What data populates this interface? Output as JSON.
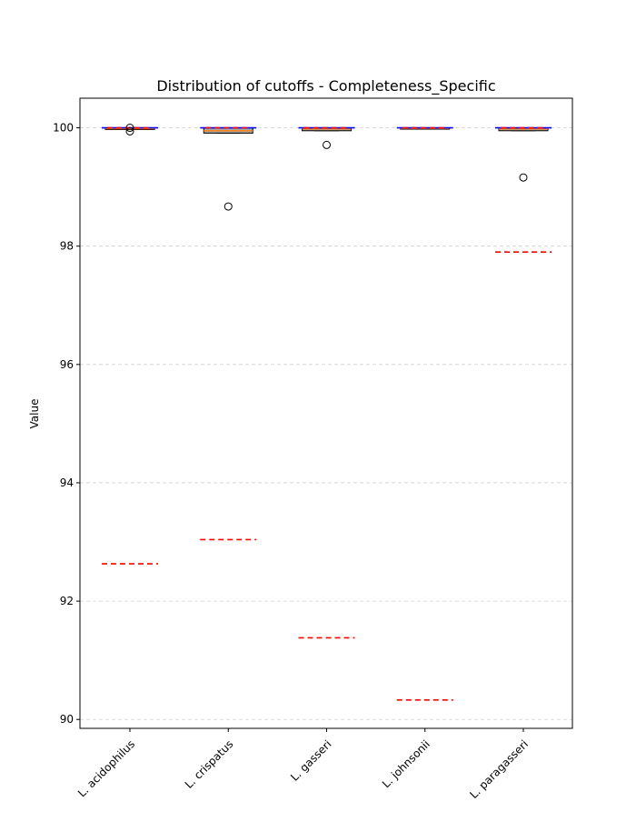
{
  "chart_data": {
    "type": "box",
    "title": "Distribution of cutoffs - Completeness_Specific",
    "xlabel": "",
    "ylabel": "Value",
    "ylim": [
      89.85,
      100.5
    ],
    "yticks": [
      90,
      92,
      94,
      96,
      98,
      100
    ],
    "grid": "y",
    "categories": [
      "L. acidophilus",
      "L. crispatus",
      "L. gasseri",
      "L. johnsonii",
      "L. paragasseri"
    ],
    "boxes": [
      {
        "q1": 99.97,
        "median": 99.985,
        "q3": 100.0,
        "whisker_low": 99.97,
        "whisker_high": 100.0,
        "outliers": [
          100.0,
          99.94
        ],
        "cutoff_red": 92.63,
        "cutoff_blue": 100.0
      },
      {
        "q1": 99.91,
        "median": 99.95,
        "q3": 100.0,
        "whisker_low": 99.91,
        "whisker_high": 100.0,
        "outliers": [
          98.67
        ],
        "cutoff_red": 93.04,
        "cutoff_blue": 100.0
      },
      {
        "q1": 99.95,
        "median": 99.98,
        "q3": 100.0,
        "whisker_low": 99.95,
        "whisker_high": 100.0,
        "outliers": [
          99.71
        ],
        "cutoff_red": 91.38,
        "cutoff_blue": 100.0
      },
      {
        "q1": 99.98,
        "median": 99.99,
        "q3": 100.0,
        "whisker_low": 99.98,
        "whisker_high": 100.0,
        "outliers": [],
        "cutoff_red": 90.33,
        "cutoff_blue": 100.0
      },
      {
        "q1": 99.95,
        "median": 99.98,
        "q3": 100.0,
        "whisker_low": 99.95,
        "whisker_high": 100.0,
        "outliers": [
          99.16
        ],
        "cutoff_red": 97.9,
        "cutoff_blue": 100.0
      }
    ],
    "colors": {
      "box_fill": "#a6a6a6",
      "box_edge": "#000000",
      "median": "#ff7f0e",
      "cutoff_red": "#ff0000",
      "cutoff_blue": "#0000ff",
      "grid": "#d0d0d0"
    }
  }
}
